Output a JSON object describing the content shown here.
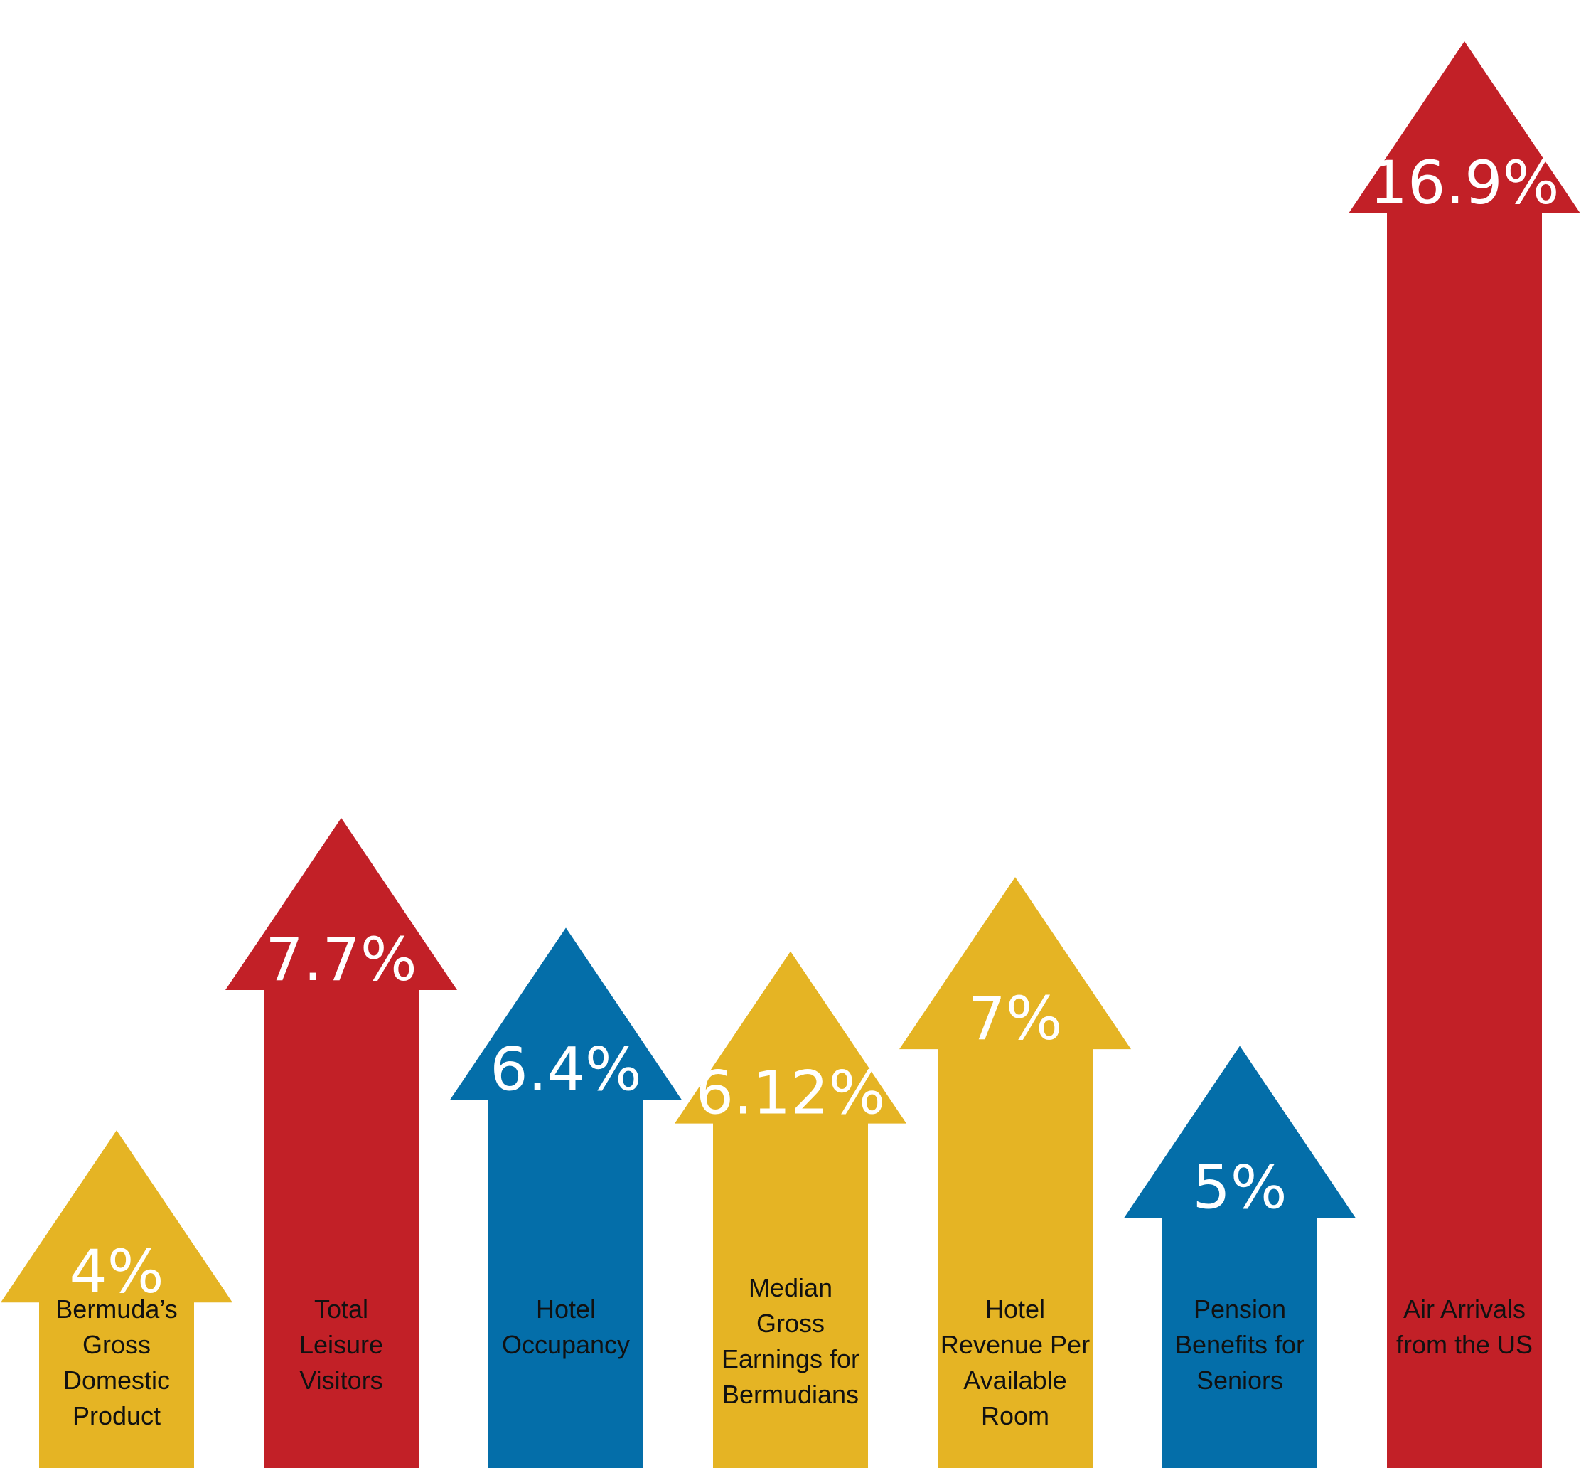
{
  "chart_data": {
    "type": "bar",
    "categories": [
      "Bermuda's Gross Domestic Product",
      "Total Leisure Visitors",
      "Hotel Occupancy",
      "Median Gross Earnings for Bermudians",
      "Hotel Revenue Per Available Room",
      "Pension Benefits for Seniors",
      "Air Arrivals from the US"
    ],
    "values": [
      4,
      7.7,
      6.4,
      6.12,
      7,
      5,
      16.9
    ],
    "value_labels": [
      "4%",
      "7.7%",
      "6.4%",
      "6.12%",
      "7%",
      "5%",
      "16.9%"
    ],
    "category_labels": [
      [
        "Bermuda’s",
        "Gross",
        "Domestic",
        "Product"
      ],
      [
        "Total",
        "Leisure",
        "Visitors"
      ],
      [
        "Hotel",
        "Occupancy"
      ],
      [
        "Median",
        "Gross",
        "Earnings for",
        "Bermudians"
      ],
      [
        "Hotel",
        "Revenue Per",
        "Available",
        "Room"
      ],
      [
        "Pension",
        "Benefits for",
        "Seniors"
      ],
      [
        "Air Arrivals",
        "from the US"
      ]
    ],
    "colors": [
      "#E5B424",
      "#C22027",
      "#046EA9",
      "#E5B424",
      "#E5B424",
      "#046EA9",
      "#C22027"
    ],
    "unit": "%",
    "mark": "arrow",
    "title": "",
    "xlabel": "",
    "ylabel": ""
  }
}
